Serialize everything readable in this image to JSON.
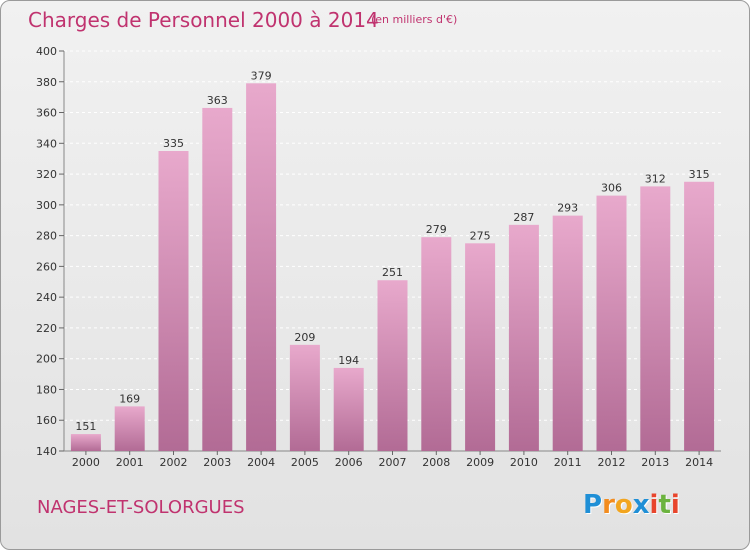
{
  "header": {
    "title": "Charges de Personnel 2000 à 2014",
    "unit": "(en milliers d'€)"
  },
  "footer": {
    "commune": "NAGES-ET-SOLORGUES",
    "logo_letters": [
      "P",
      "r",
      "o",
      "x",
      "i",
      "t",
      "i"
    ]
  },
  "colors": {
    "title": "#c0336f",
    "bar_top": "#e8a9cc",
    "bar_bottom": "#b26b95",
    "logo_letters": [
      "#1f8fd6",
      "#f28c1f",
      "#f2a51f",
      "#1f8fd6",
      "#e8452c",
      "#6cb33f",
      "#e8452c"
    ]
  },
  "chart_data": {
    "type": "bar",
    "title": "Charges de Personnel 2000 à 2014",
    "subtitle": "(en milliers d'€)",
    "categories": [
      "2000",
      "2001",
      "2002",
      "2003",
      "2004",
      "2005",
      "2006",
      "2007",
      "2008",
      "2009",
      "2010",
      "2011",
      "2012",
      "2013",
      "2014"
    ],
    "values": [
      151,
      169,
      335,
      363,
      379,
      209,
      194,
      251,
      279,
      275,
      287,
      293,
      306,
      312,
      315
    ],
    "ylim": [
      140,
      400
    ],
    "yticks": [
      140,
      160,
      180,
      200,
      220,
      240,
      260,
      280,
      300,
      320,
      340,
      360,
      380,
      400
    ],
    "grid": true,
    "legend": "none"
  }
}
